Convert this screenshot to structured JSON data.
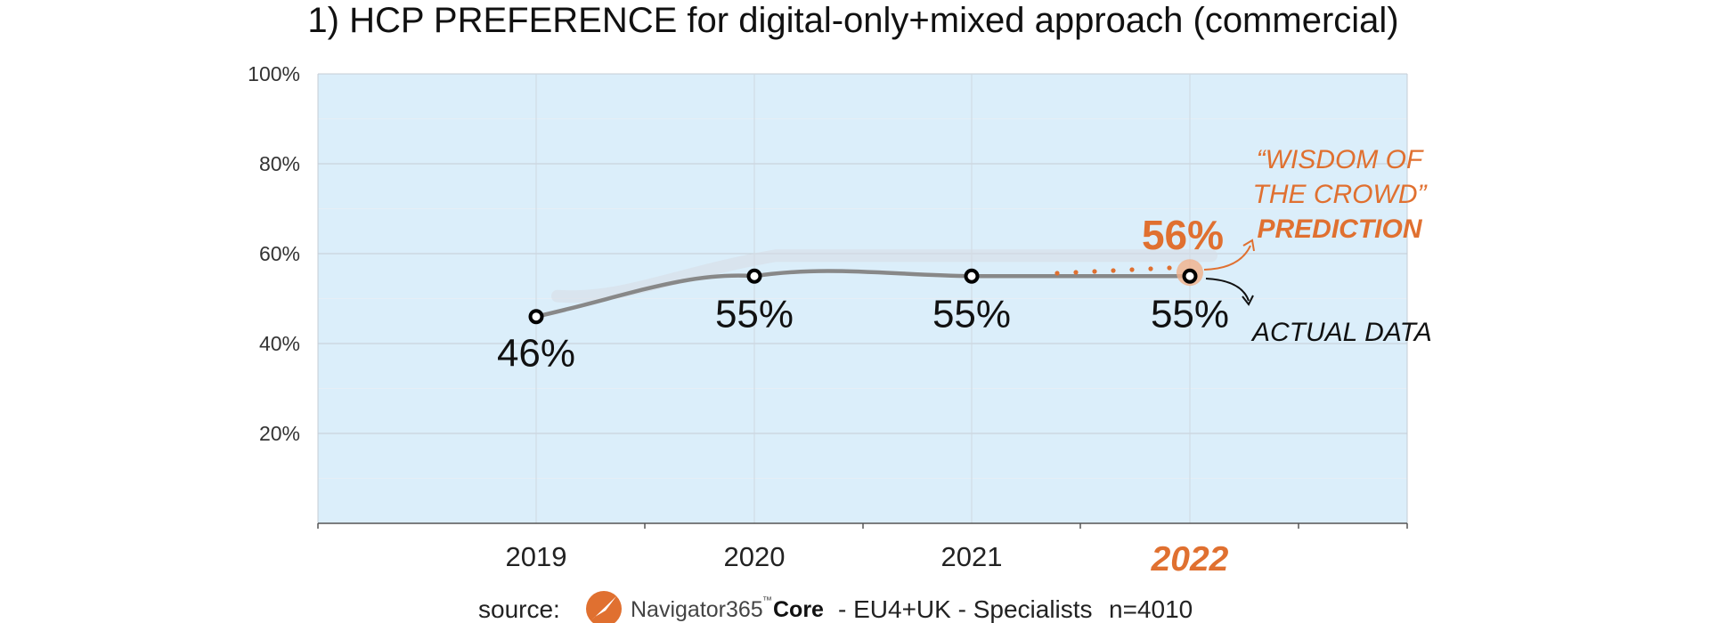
{
  "title": "1) HCP PREFERENCE for digital-only+mixed approach (commercial)",
  "chart_data": {
    "type": "line",
    "categories": [
      "2019",
      "2020",
      "2021",
      "2022"
    ],
    "highlight_category": "2022",
    "y_ticks": [
      "100%",
      "80%",
      "60%",
      "40%",
      "20%"
    ],
    "ylim": [
      0,
      100
    ],
    "grid": true,
    "series": [
      {
        "values": [
          46,
          55,
          55,
          55
        ],
        "labels": [
          "46%",
          "55%",
          "55%",
          "55%"
        ],
        "color": "#888888"
      }
    ],
    "prediction": {
      "category": "2022",
      "value": 56,
      "label": "56%",
      "color": "#e07030"
    },
    "annotations": {
      "prediction": [
        "“WISDOM OF",
        "THE CROWD”",
        "PREDICTION"
      ],
      "actual": "ACTUAL DATA"
    },
    "plot_background": "#dbeefa"
  },
  "footer": {
    "source_label": "source:",
    "brand_name": "Navigator365",
    "brand_tm": "™",
    "brand_suffix": "Core",
    "details": "- EU4+UK - Specialists",
    "sample": "n=4010"
  }
}
